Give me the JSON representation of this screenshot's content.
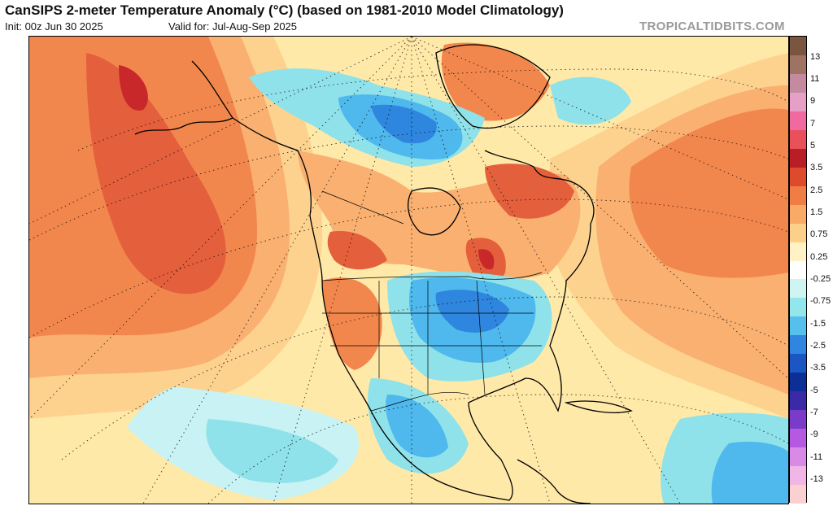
{
  "header": {
    "title": "CanSIPS 2-meter Temperature Anomaly (°C) (based on 1981-2010 Model Climatology)",
    "init": "Init: 00z Jun 30 2025",
    "valid": "Valid for: Jul-Aug-Sep 2025",
    "brand": "TROPICALTIDBITS.COM"
  },
  "colorbar": {
    "labels": [
      "13",
      "11",
      "9",
      "7",
      "5",
      "3.5",
      "2.5",
      "1.5",
      "0.75",
      "0.25",
      "-0.25",
      "-0.75",
      "-1.5",
      "-2.5",
      "-3.5",
      "-5",
      "-7",
      "-9",
      "-11",
      "-13"
    ],
    "colors": [
      "#7a5540",
      "#9e7363",
      "#c48aa0",
      "#e6a0c8",
      "#f06aa0",
      "#e8505a",
      "#b81e24",
      "#dd4a2c",
      "#ef7d44",
      "#f9aa66",
      "#fcd089",
      "#fff2c4",
      "#ffffff",
      "#cff4f4",
      "#93e6ea",
      "#55bfee",
      "#2f85df",
      "#1c55c4",
      "#0b2f96",
      "#3b2aa8",
      "#7a3cc8",
      "#b55ae0",
      "#d88ae6",
      "#f0b6e6",
      "#fad0d0"
    ]
  },
  "map": {
    "anomaly_colors": {
      "warm_dark": "#c8282a",
      "warm": "#e45f3c",
      "warm_mid": "#f2874e",
      "warm_light": "#f9b070",
      "warm_pale": "#fdd28f",
      "neutral_warm": "#fff0bf",
      "neutral": "#ffffff",
      "cool_pale": "#c8f2f4",
      "cool_light": "#8fe2ea",
      "cool": "#4fb8ec",
      "cool_mid": "#2f86df",
      "cool_dark": "#1a4fbe"
    },
    "coastline_color": "#000000"
  }
}
